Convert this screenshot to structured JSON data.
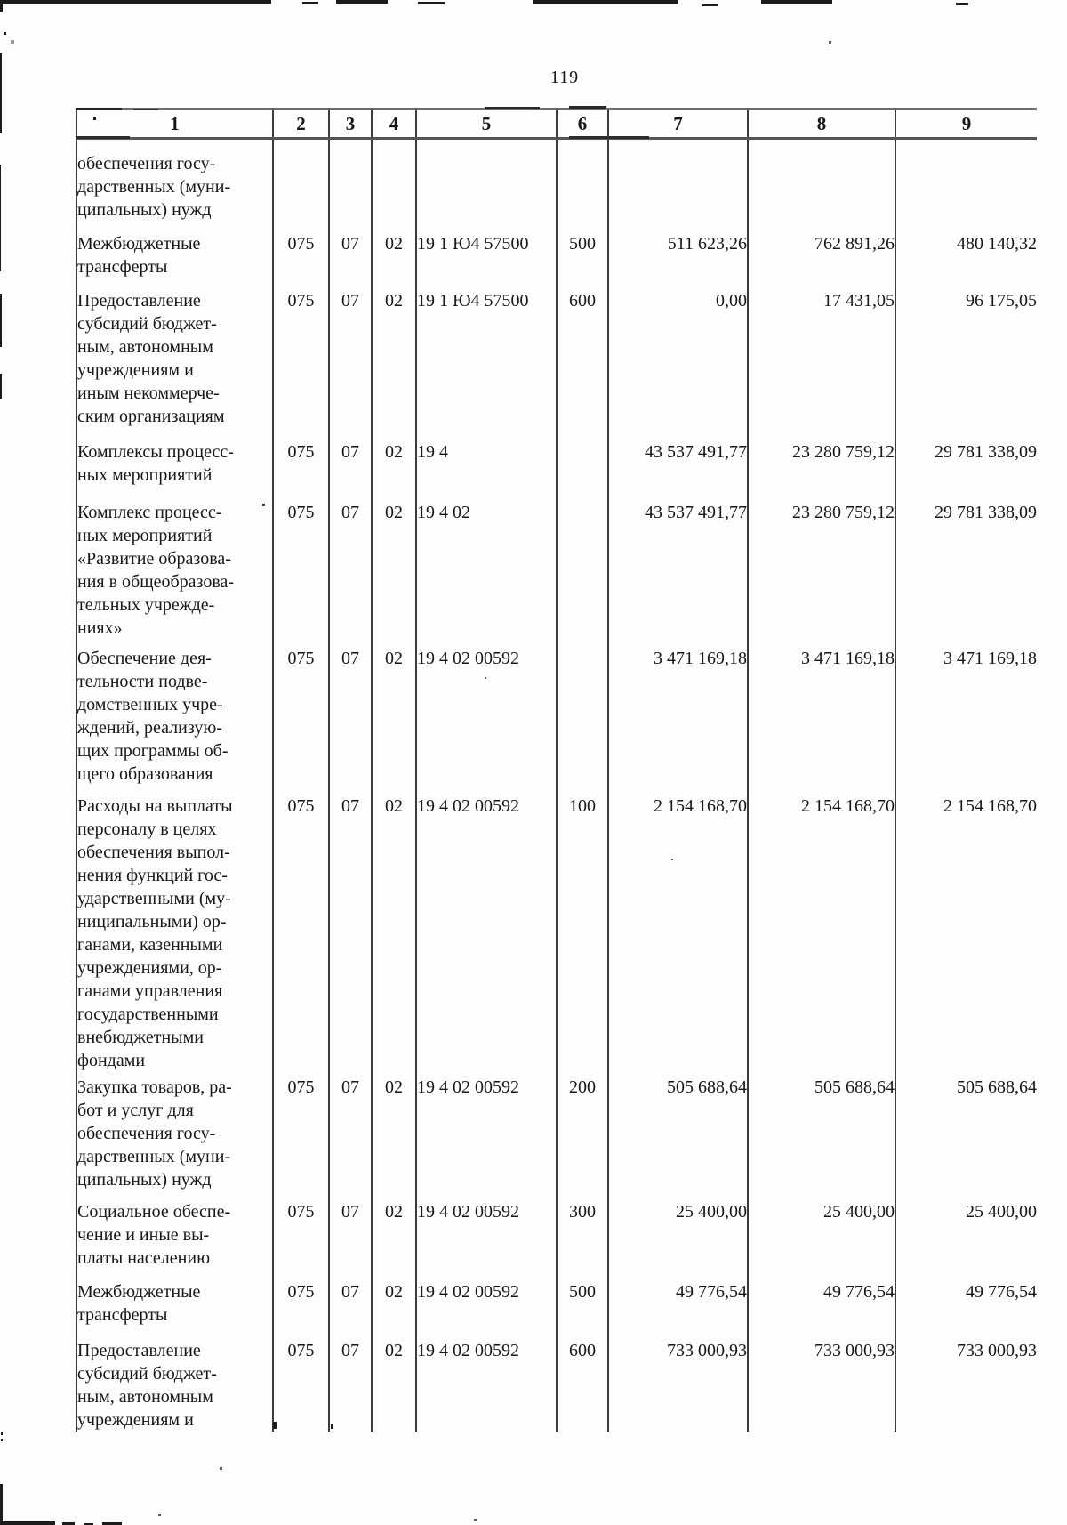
{
  "page": {
    "number": "119"
  },
  "colors": {
    "paper": "#fdfdfc",
    "ink": "#171717",
    "rule_vertical": "#3c3c3c",
    "rule_horizontal": "#6e6e6e"
  },
  "table": {
    "headers": [
      "1",
      "2",
      "3",
      "4",
      "5",
      "6",
      "7",
      "8",
      "9"
    ],
    "rows": [
      {
        "cells": [
          "обеспечения госу-\nдарственных (муни-\nципальных) нужд",
          "",
          "",
          "",
          "",
          "",
          "",
          "",
          ""
        ]
      },
      {
        "cells": [
          "Межбюджетные\nтрансферты",
          "075",
          "07",
          "02",
          "19 1 Ю4 57500",
          "500",
          "511 623,26",
          "762 891,26",
          "480 140,32"
        ]
      },
      {
        "cells": [
          "Предоставление\nсубсидий бюджет-\nным, автономным\nучреждениям и\nиным некоммерче-\nским организациям",
          "075",
          "07",
          "02",
          "19 1 Ю4 57500",
          "600",
          "0,00",
          "17 431,05",
          "96 175,05"
        ]
      },
      {
        "cells": [
          "Комплексы процесс-\nных мероприятий",
          "075",
          "07",
          "02",
          "19 4",
          "",
          "43 537 491,77",
          "23 280 759,12",
          "29 781 338,09"
        ]
      },
      {
        "cells": [
          "Комплекс процесс-\nных мероприятий\n«Развитие образова-\nния в общеобразова-\nтельных учрежде-\nниях»",
          "075",
          "07",
          "02",
          "19 4 02",
          "",
          "43 537 491,77",
          "23 280 759,12",
          "29 781 338,09"
        ]
      },
      {
        "cells": [
          "Обеспечение дея-\nтельности подве-\nдомственных учре-\nждений, реализую-\nщих программы об-\nщего образования",
          "075",
          "07",
          "02",
          "19 4 02 00592",
          "",
          "3 471 169,18",
          "3 471 169,18",
          "3 471 169,18"
        ]
      },
      {
        "cells": [
          "Расходы на выплаты\nперсоналу в целях\nобеспечения выпол-\nнения функций гос-\nударственными (му-\nниципальными) ор-\nганами, казенными\nучреждениями, ор-\nганами управления\nгосударственными\nвнебюджетными\nфондами",
          "075",
          "07",
          "02",
          "19 4 02 00592",
          "100",
          "2 154 168,70",
          "2 154 168,70",
          "2 154 168,70"
        ]
      },
      {
        "cells": [
          "Закупка товаров, ра-\nбот и услуг для\nобеспечения госу-\nдарственных (муни-\nципальных) нужд",
          "075",
          "07",
          "02",
          "19 4 02 00592",
          "200",
          "505 688,64",
          "505 688,64",
          "505 688,64"
        ]
      },
      {
        "cells": [
          "Социальное обеспе-\nчение и иные вы-\nплаты населению",
          "075",
          "07",
          "02",
          "19 4 02 00592",
          "300",
          "25 400,00",
          "25 400,00",
          "25 400,00"
        ]
      },
      {
        "cells": [
          "Межбюджетные\nтрансферты",
          "075",
          "07",
          "02",
          "19 4 02 00592",
          "500",
          "49 776,54",
          "49 776,54",
          "49 776,54"
        ]
      },
      {
        "cells": [
          "Предоставление\nсубсидий бюджет-\nным, автономным\nучреждениям и",
          "075",
          "07",
          "02",
          "19 4 02 00592",
          "600",
          "733 000,93",
          "733 000,93",
          "733 000,93"
        ]
      }
    ]
  }
}
